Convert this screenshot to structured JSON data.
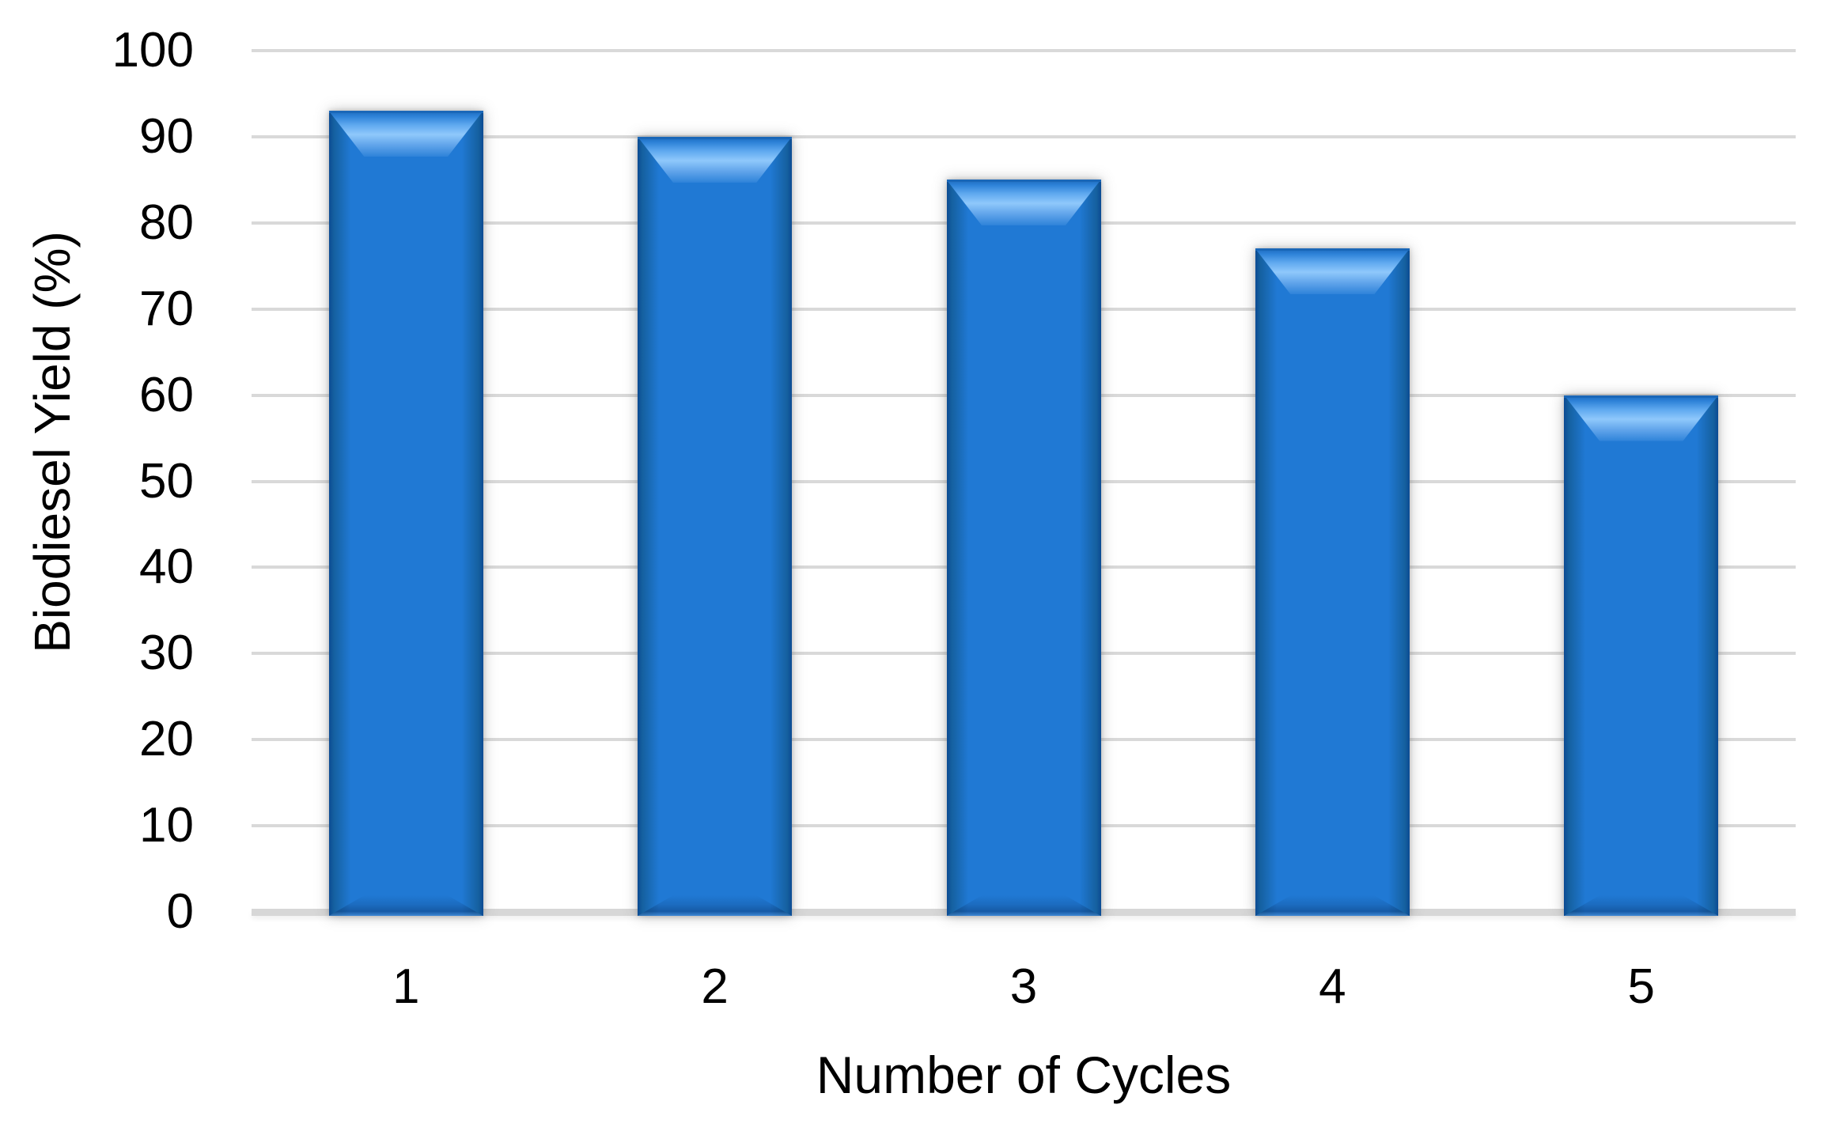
{
  "chart_data": {
    "type": "bar",
    "title": "",
    "categories": [
      "1",
      "2",
      "3",
      "4",
      "5"
    ],
    "values": [
      93,
      90,
      85,
      77,
      60
    ],
    "xlabel": "Number of Cycles",
    "ylabel": "Biodiesel Yield (%)",
    "ylim": [
      0,
      100
    ],
    "ytick_step": 10,
    "yticks": [
      0,
      10,
      20,
      30,
      40,
      50,
      60,
      70,
      80,
      90,
      100
    ],
    "grid": "horizontal",
    "legend": "none",
    "colors": {
      "bar_face": "#2079D4",
      "bar_edge_dark": "#0B4A93",
      "bar_highlight": "#8FC8FB",
      "bar_top_edge": "#1A67B8",
      "gridline": "#D9D9D9",
      "axis_baseline": "#D7D7D7",
      "text": "#000000",
      "background": "#FFFFFF"
    }
  }
}
